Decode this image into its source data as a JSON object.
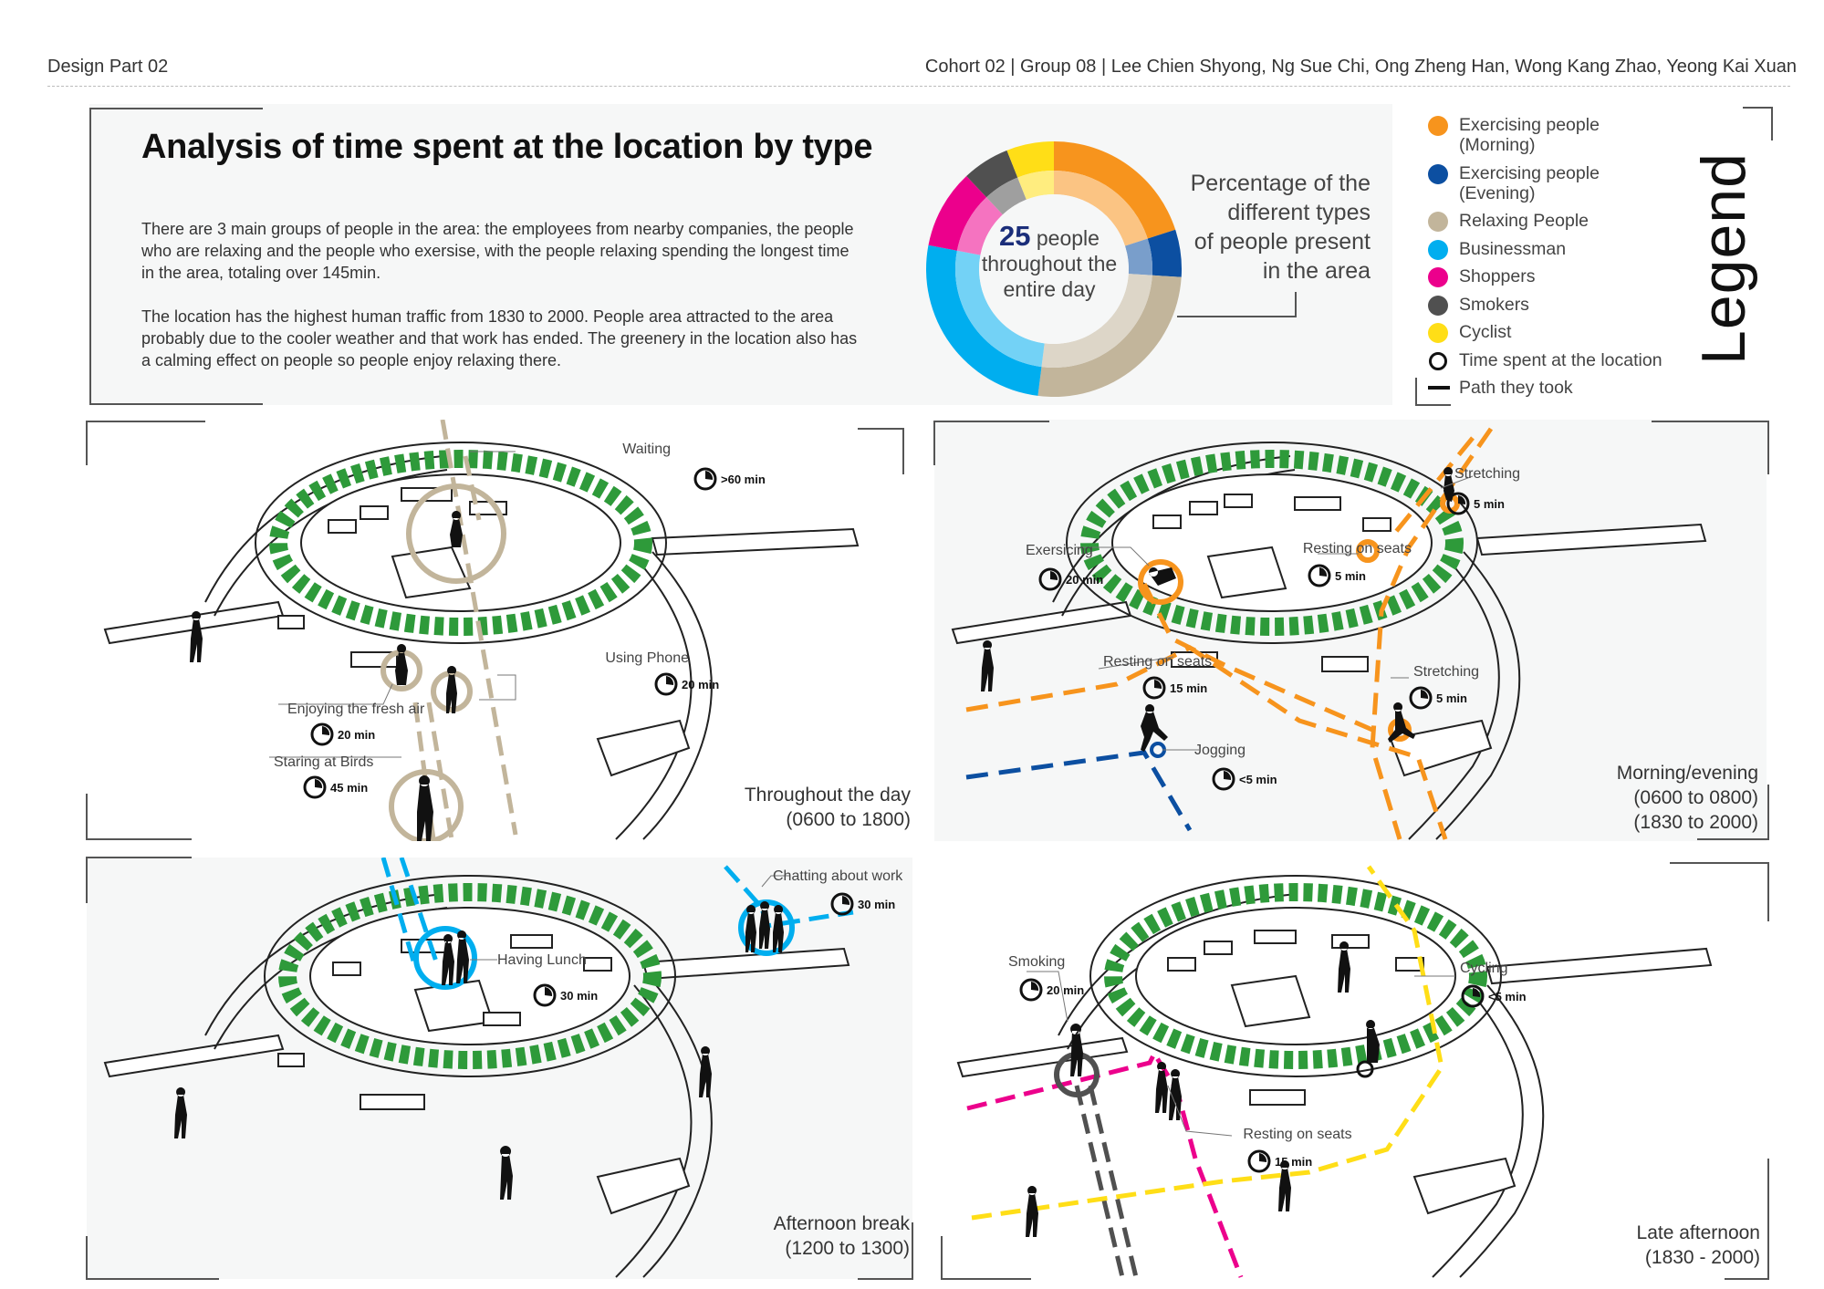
{
  "header": {
    "left": "Design Part 02",
    "right": "Cohort 02 | Group 08 | Lee Chien Shyong, Ng Sue Chi, Ong Zheng Han, Wong Kang Zhao, Yeong Kai Xuan"
  },
  "title": "Analysis of time spent at the location by type",
  "intro": {
    "p1": "There are 3 main groups of people in the area: the employees from nearby companies, the people who are relaxing and the people who exersise, with the people relaxing spending the longest time in the area, totaling over 145min.",
    "p2": "The location has the highest human traffic from 1830 to 2000. People area attracted to the area probably due to the cooler weather and that work has ended. The greenery in the location also has a calming effect on people so people enjoy relaxing there."
  },
  "donut": {
    "count": "25",
    "center_suffix": "people",
    "center_line2": "throughout the",
    "center_line3": "entire day",
    "caption": [
      "Percentage of the",
      "different types",
      "of people present",
      "in the area"
    ],
    "segments": [
      {
        "type": "Exercising people (Morning)",
        "percent": 20,
        "color": "#f7941d"
      },
      {
        "type": "Exercising people (Evening)",
        "percent": 6,
        "color": "#0c4fa1"
      },
      {
        "type": "Relaxing People",
        "percent": 26,
        "color": "#c2b59b"
      },
      {
        "type": "Businessman",
        "percent": 26,
        "color": "#00aeef"
      },
      {
        "type": "Shoppers",
        "percent": 10,
        "color": "#ec008c"
      },
      {
        "type": "Smokers",
        "percent": 6,
        "color": "#505050"
      },
      {
        "type": "Cyclist",
        "percent": 6,
        "color": "#ffde17"
      }
    ]
  },
  "legend": {
    "title": "Legend",
    "items": [
      {
        "label": "Exercising people (Morning)",
        "color": "#f7941d"
      },
      {
        "label": "Exercising people (Evening)",
        "color": "#0c4fa1"
      },
      {
        "label": "Relaxing People",
        "color": "#c2b59b"
      },
      {
        "label": "Businessman",
        "color": "#00aeef"
      },
      {
        "label": "Shoppers",
        "color": "#ec008c"
      },
      {
        "label": "Smokers",
        "color": "#505050"
      },
      {
        "label": "Cyclist",
        "color": "#ffde17"
      }
    ],
    "time_label": "Time spent at the location",
    "path_label": "Path they took"
  },
  "scenes": {
    "day": {
      "caption": [
        "Throughout the day",
        "(0600 to 1800)"
      ],
      "color": "#c2b59b",
      "labels": [
        {
          "text": "Waiting",
          "time": ">60 min"
        },
        {
          "text": "Using Phone",
          "time": "20 min"
        },
        {
          "text": "Enjoying the fresh air",
          "time": "20 min"
        },
        {
          "text": "Staring at Birds",
          "time": "45 min"
        }
      ]
    },
    "morning": {
      "caption": [
        "Morning/evening",
        "(0600 to 0800)",
        "(1830 to 2000)"
      ],
      "color": "#f7941d",
      "labels": [
        {
          "text": "Stretching",
          "time": "5 min"
        },
        {
          "text": "Exersicing",
          "time": "20 min"
        },
        {
          "text": "Resting on seats",
          "time": "5 min"
        },
        {
          "text": "Resting on seats",
          "time": "15 min"
        },
        {
          "text": "Stretching",
          "time": "5 min"
        },
        {
          "text": "Jogging",
          "time": "<5 min"
        }
      ]
    },
    "afternoon": {
      "caption": [
        "Afternoon break",
        "(1200 to 1300)"
      ],
      "color": "#00aeef",
      "labels": [
        {
          "text": "Chatting about work",
          "time": "30 min"
        },
        {
          "text": "Having Lunch",
          "time": "30 min"
        }
      ]
    },
    "late": {
      "caption": [
        "Late afternoon",
        "(1830 - 2000)"
      ],
      "labels": [
        {
          "text": "Smoking",
          "time": "20 min"
        },
        {
          "text": "Cycling",
          "time": "<5 min"
        },
        {
          "text": "Resting on seats",
          "time": "15 min"
        }
      ]
    }
  }
}
